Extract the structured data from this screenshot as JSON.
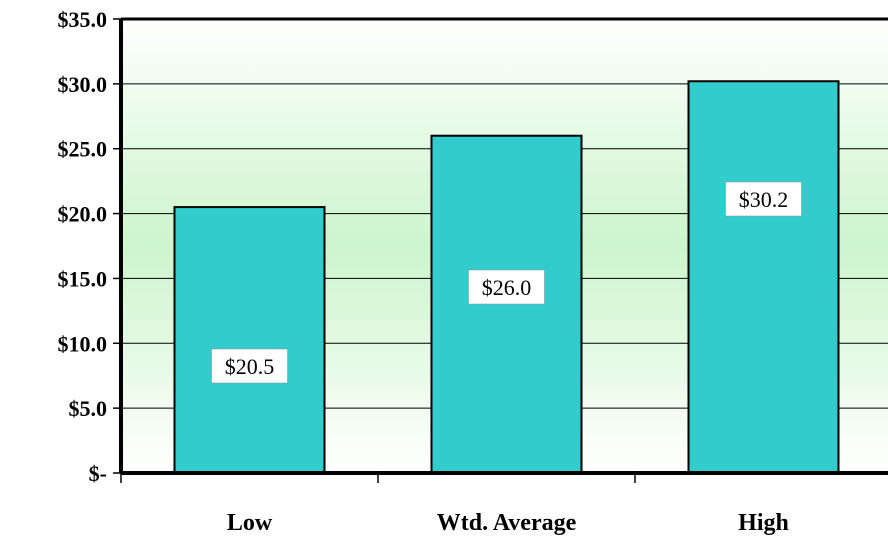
{
  "chart_data": {
    "type": "bar",
    "title": "",
    "xlabel": "",
    "ylabel": "",
    "categories": [
      "Low",
      "Wtd. Average",
      "High"
    ],
    "values": [
      20.5,
      26.0,
      30.2
    ],
    "data_labels": [
      "$20.5",
      "$26.0",
      "$30.2"
    ],
    "ylim": [
      0,
      35
    ],
    "yticks": [
      0,
      5,
      10,
      15,
      20,
      25,
      30,
      35
    ],
    "ytick_labels": [
      "$-",
      "$5.0",
      "$10.0",
      "$15.0",
      "$20.0",
      "$25.0",
      "$30.0",
      "$35.0"
    ],
    "grid": true,
    "legend": "none",
    "colors": {
      "bar": "#33CCCC",
      "plot_bg_top": "#ffffff",
      "plot_bg_mid": "#ccf5cc",
      "plot_bg_bottom": "#ffffff",
      "axis": "#000000",
      "label_box": "#ffffff"
    }
  }
}
